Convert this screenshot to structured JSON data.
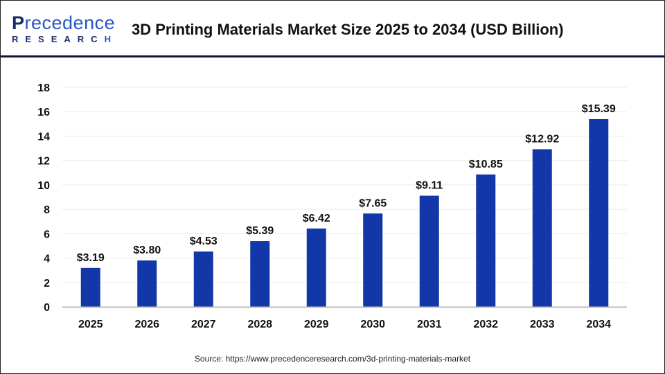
{
  "logo": {
    "line1": "Precedence",
    "line2": "RESEARCH"
  },
  "title": "3D Printing Materials Market Size 2025 to 2034 (USD Billion)",
  "source": "Source: https://www.precedenceresearch.com/3d-printing-materials-market",
  "colors": {
    "bar": "#1137a8",
    "header_line": "#0d1440"
  },
  "chart_data": {
    "type": "bar",
    "title": "3D Printing Materials Market Size 2025 to 2034 (USD Billion)",
    "categories": [
      "2025",
      "2026",
      "2027",
      "2028",
      "2029",
      "2030",
      "2031",
      "2032",
      "2033",
      "2034"
    ],
    "values": [
      3.19,
      3.8,
      4.53,
      5.39,
      6.42,
      7.65,
      9.11,
      10.85,
      12.92,
      15.39
    ],
    "data_labels": [
      "$3.19",
      "$3.80",
      "$4.53",
      "$5.39",
      "$6.42",
      "$7.65",
      "$9.11",
      "$10.85",
      "$12.92",
      "$15.39"
    ],
    "ylim": [
      0,
      18
    ],
    "yticks": [
      0,
      2,
      4,
      6,
      8,
      10,
      12,
      14,
      16,
      18
    ],
    "grid": true,
    "xlabel": "",
    "ylabel": ""
  }
}
